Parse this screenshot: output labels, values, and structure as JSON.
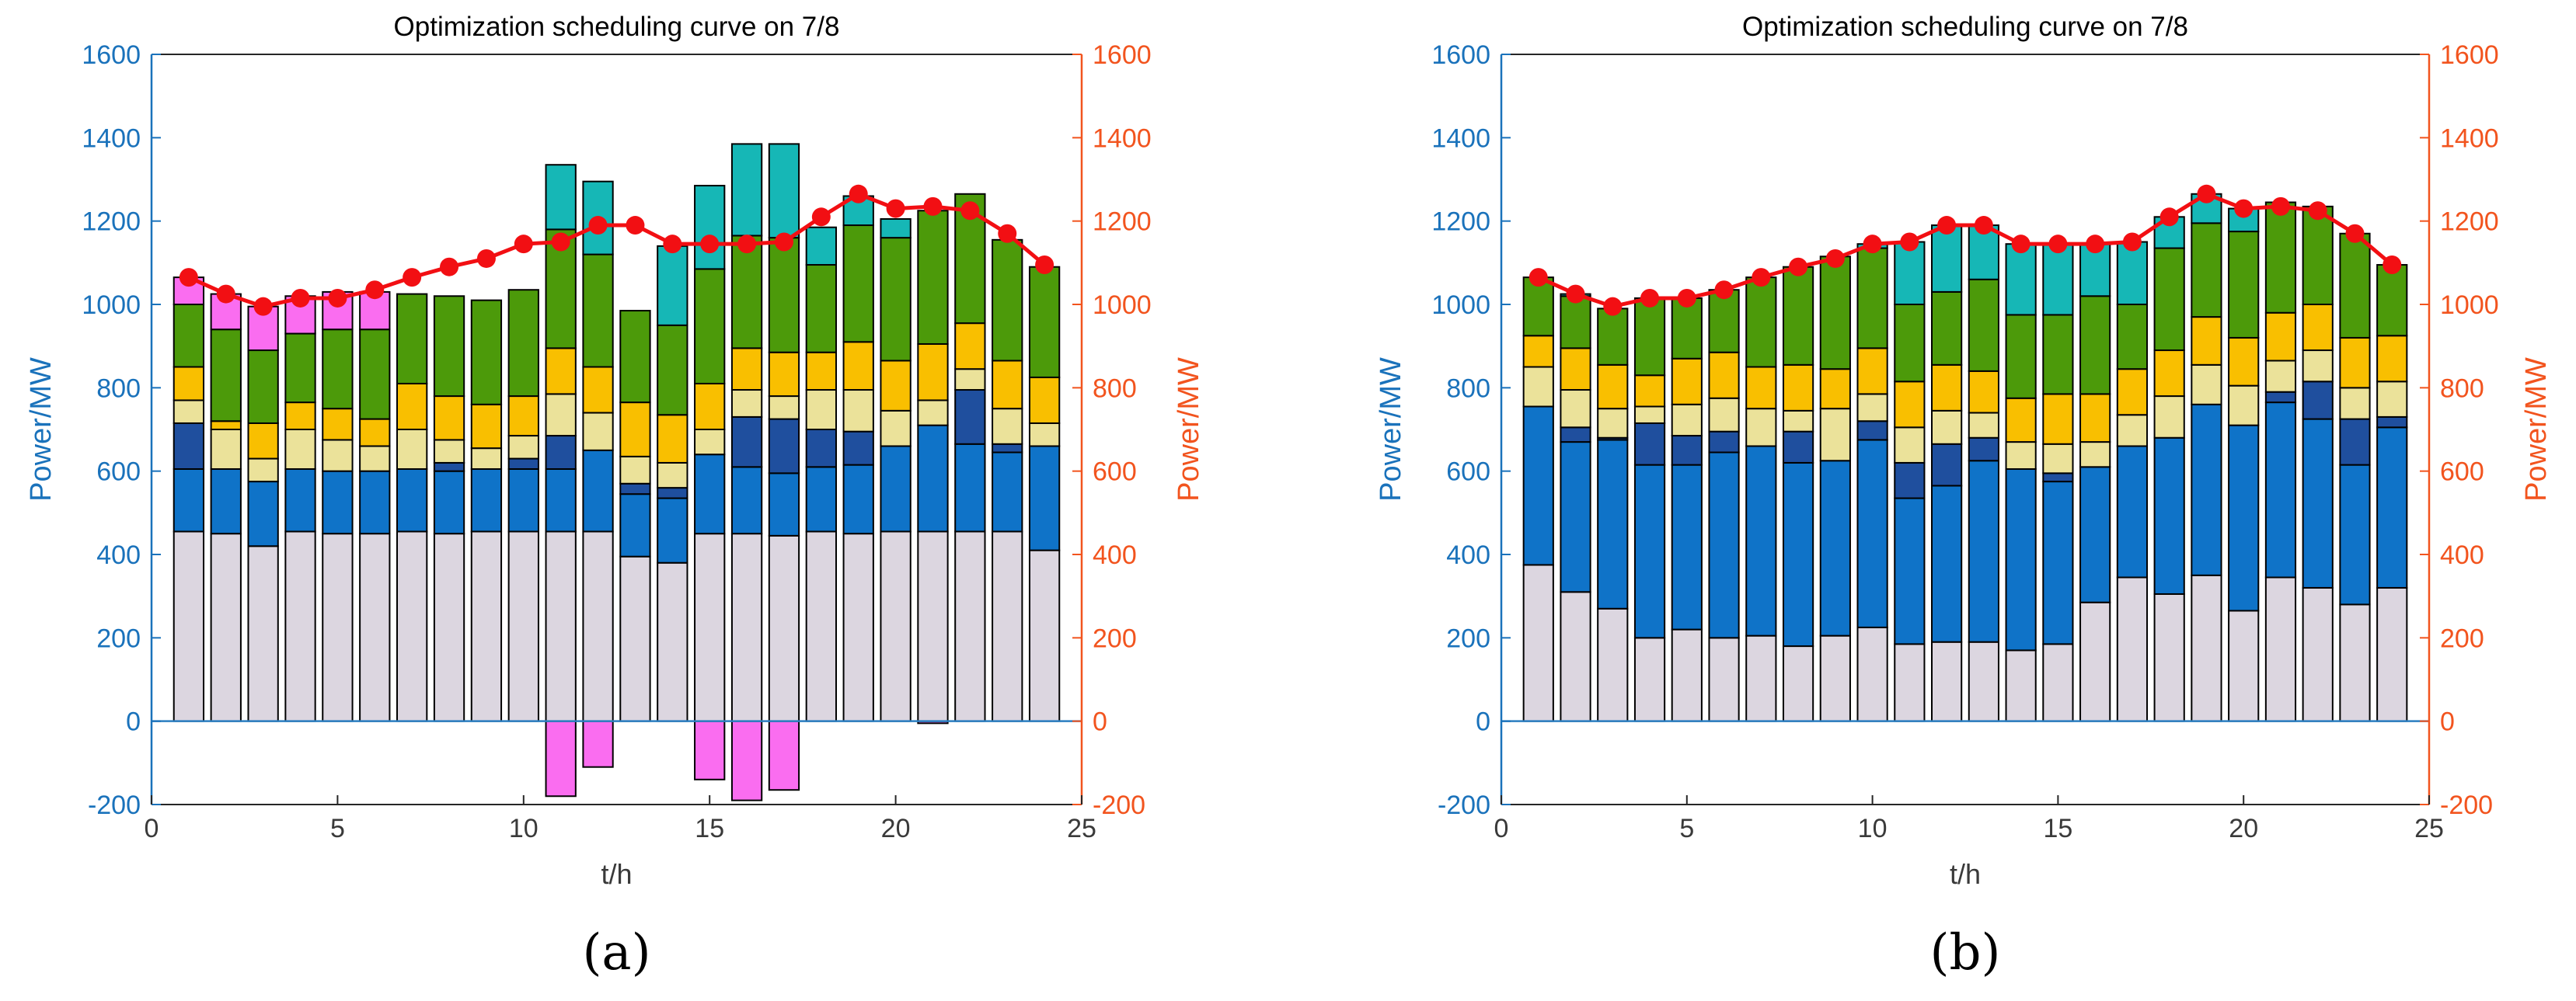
{
  "chart_data": [
    {
      "type": "bar",
      "stacked": true,
      "panel_label": "(a)",
      "title": "Optimization scheduling curve on 7/8",
      "xlabel": "t/h",
      "ylabel_left": "Power/MW",
      "ylabel_right": "Power/MW",
      "xlim": [
        0,
        25
      ],
      "ylim": [
        -200,
        1600
      ],
      "xticks": [
        "0",
        "5",
        "10",
        "15",
        "20",
        "25"
      ],
      "yticks": [
        "-200",
        "0",
        "200",
        "400",
        "600",
        "800",
        "1000",
        "1200",
        "1400",
        "1600"
      ],
      "x": [
        1,
        2,
        3,
        4,
        5,
        6,
        7,
        8,
        9,
        10,
        11,
        12,
        13,
        14,
        15,
        16,
        17,
        18,
        19,
        20,
        21,
        22,
        23,
        24
      ],
      "series": [
        {
          "name": "layer-1",
          "color": "#dcd6e0",
          "values": [
            455,
            450,
            420,
            455,
            450,
            450,
            455,
            450,
            455,
            455,
            455,
            455,
            395,
            380,
            450,
            450,
            445,
            455,
            450,
            455,
            455,
            455,
            455,
            410
          ]
        },
        {
          "name": "layer-2",
          "color": "#0f73c8",
          "values": [
            150,
            155,
            155,
            150,
            150,
            150,
            150,
            150,
            150,
            150,
            150,
            195,
            150,
            155,
            190,
            160,
            150,
            155,
            165,
            205,
            255,
            210,
            190,
            250
          ]
        },
        {
          "name": "layer-3",
          "color": "#1f4f9e",
          "values": [
            110,
            0,
            0,
            0,
            0,
            0,
            0,
            20,
            0,
            25,
            80,
            0,
            25,
            25,
            0,
            120,
            130,
            90,
            80,
            0,
            0,
            130,
            20,
            0
          ]
        },
        {
          "name": "layer-4",
          "color": "#ebe29a",
          "values": [
            55,
            95,
            55,
            95,
            75,
            60,
            95,
            55,
            50,
            55,
            100,
            90,
            65,
            60,
            60,
            65,
            55,
            95,
            100,
            85,
            60,
            50,
            85,
            55
          ]
        },
        {
          "name": "layer-5",
          "color": "#f9bf00",
          "values": [
            80,
            20,
            85,
            65,
            75,
            65,
            110,
            105,
            105,
            95,
            110,
            110,
            130,
            115,
            110,
            100,
            105,
            90,
            115,
            120,
            135,
            110,
            115,
            110
          ]
        },
        {
          "name": "layer-6",
          "color": "#4c9a0a",
          "values": [
            150,
            220,
            175,
            165,
            190,
            215,
            215,
            240,
            250,
            255,
            285,
            270,
            220,
            215,
            275,
            270,
            275,
            210,
            280,
            295,
            320,
            310,
            290,
            265
          ]
        },
        {
          "name": "layer-7",
          "color": "#16b7b6",
          "values": [
            0,
            0,
            0,
            0,
            0,
            0,
            0,
            0,
            0,
            0,
            155,
            175,
            0,
            190,
            200,
            220,
            225,
            90,
            70,
            45,
            0,
            0,
            0,
            0
          ]
        },
        {
          "name": "layer-8",
          "color": "#fa6df0",
          "values": [
            65,
            85,
            105,
            90,
            90,
            90,
            0,
            0,
            0,
            0,
            -180,
            -110,
            0,
            0,
            -140,
            -190,
            -165,
            0,
            0,
            0,
            -5,
            0,
            0,
            0
          ]
        }
      ],
      "load_curve": {
        "name": "load",
        "color": "#f20f13",
        "values": [
          1065,
          1025,
          995,
          1015,
          1015,
          1035,
          1065,
          1090,
          1110,
          1145,
          1150,
          1190,
          1190,
          1145,
          1145,
          1145,
          1150,
          1210,
          1265,
          1230,
          1235,
          1225,
          1170,
          1095
        ]
      }
    },
    {
      "type": "bar",
      "stacked": true,
      "panel_label": "(b)",
      "title": "Optimization scheduling curve on 7/8",
      "xlabel": "t/h",
      "ylabel_left": "Power/MW",
      "ylabel_right": "Power/MW",
      "xlim": [
        0,
        25
      ],
      "ylim": [
        -200,
        1600
      ],
      "xticks": [
        "0",
        "5",
        "10",
        "15",
        "20",
        "25"
      ],
      "yticks": [
        "-200",
        "0",
        "200",
        "400",
        "600",
        "800",
        "1000",
        "1200",
        "1400",
        "1600"
      ],
      "x": [
        1,
        2,
        3,
        4,
        5,
        6,
        7,
        8,
        9,
        10,
        11,
        12,
        13,
        14,
        15,
        16,
        17,
        18,
        19,
        20,
        21,
        22,
        23,
        24
      ],
      "series": [
        {
          "name": "layer-1",
          "color": "#dcd6e0",
          "values": [
            375,
            310,
            270,
            200,
            220,
            200,
            205,
            180,
            205,
            225,
            185,
            190,
            190,
            170,
            185,
            285,
            345,
            305,
            350,
            265,
            345,
            320,
            280,
            320
          ]
        },
        {
          "name": "layer-2",
          "color": "#0f73c8",
          "values": [
            380,
            360,
            405,
            415,
            395,
            445,
            455,
            440,
            420,
            450,
            350,
            375,
            435,
            435,
            390,
            325,
            315,
            375,
            410,
            445,
            420,
            405,
            335,
            385
          ]
        },
        {
          "name": "layer-3",
          "color": "#1f4f9e",
          "values": [
            0,
            35,
            5,
            100,
            70,
            50,
            0,
            75,
            0,
            45,
            85,
            100,
            55,
            0,
            20,
            0,
            0,
            0,
            0,
            0,
            25,
            90,
            110,
            25
          ]
        },
        {
          "name": "layer-4",
          "color": "#ebe29a",
          "values": [
            95,
            90,
            70,
            40,
            75,
            80,
            90,
            50,
            125,
            65,
            85,
            80,
            60,
            65,
            70,
            60,
            75,
            100,
            95,
            95,
            75,
            75,
            75,
            85
          ]
        },
        {
          "name": "layer-5",
          "color": "#f9bf00",
          "values": [
            75,
            100,
            105,
            75,
            110,
            110,
            100,
            110,
            95,
            110,
            110,
            110,
            100,
            105,
            120,
            115,
            110,
            110,
            115,
            115,
            115,
            110,
            120,
            110
          ]
        },
        {
          "name": "layer-6",
          "color": "#4c9a0a",
          "values": [
            140,
            125,
            135,
            185,
            145,
            150,
            215,
            235,
            270,
            240,
            185,
            175,
            220,
            200,
            190,
            235,
            155,
            245,
            225,
            255,
            265,
            235,
            250,
            170
          ]
        },
        {
          "name": "layer-7",
          "color": "#16b7b6",
          "values": [
            0,
            5,
            0,
            0,
            0,
            0,
            0,
            0,
            0,
            10,
            150,
            160,
            130,
            170,
            170,
            125,
            150,
            75,
            70,
            55,
            0,
            0,
            0,
            0
          ]
        }
      ],
      "load_curve": {
        "name": "load",
        "color": "#f20f13",
        "values": [
          1065,
          1025,
          995,
          1015,
          1015,
          1035,
          1065,
          1090,
          1110,
          1145,
          1150,
          1190,
          1190,
          1145,
          1145,
          1145,
          1150,
          1210,
          1265,
          1230,
          1235,
          1225,
          1170,
          1095
        ]
      }
    }
  ],
  "colors": {
    "left_axis": "#1a72bb",
    "right_axis": "#f2541e",
    "tick_text": "#3a3a3a",
    "zero_line": "#2b7ec1"
  }
}
